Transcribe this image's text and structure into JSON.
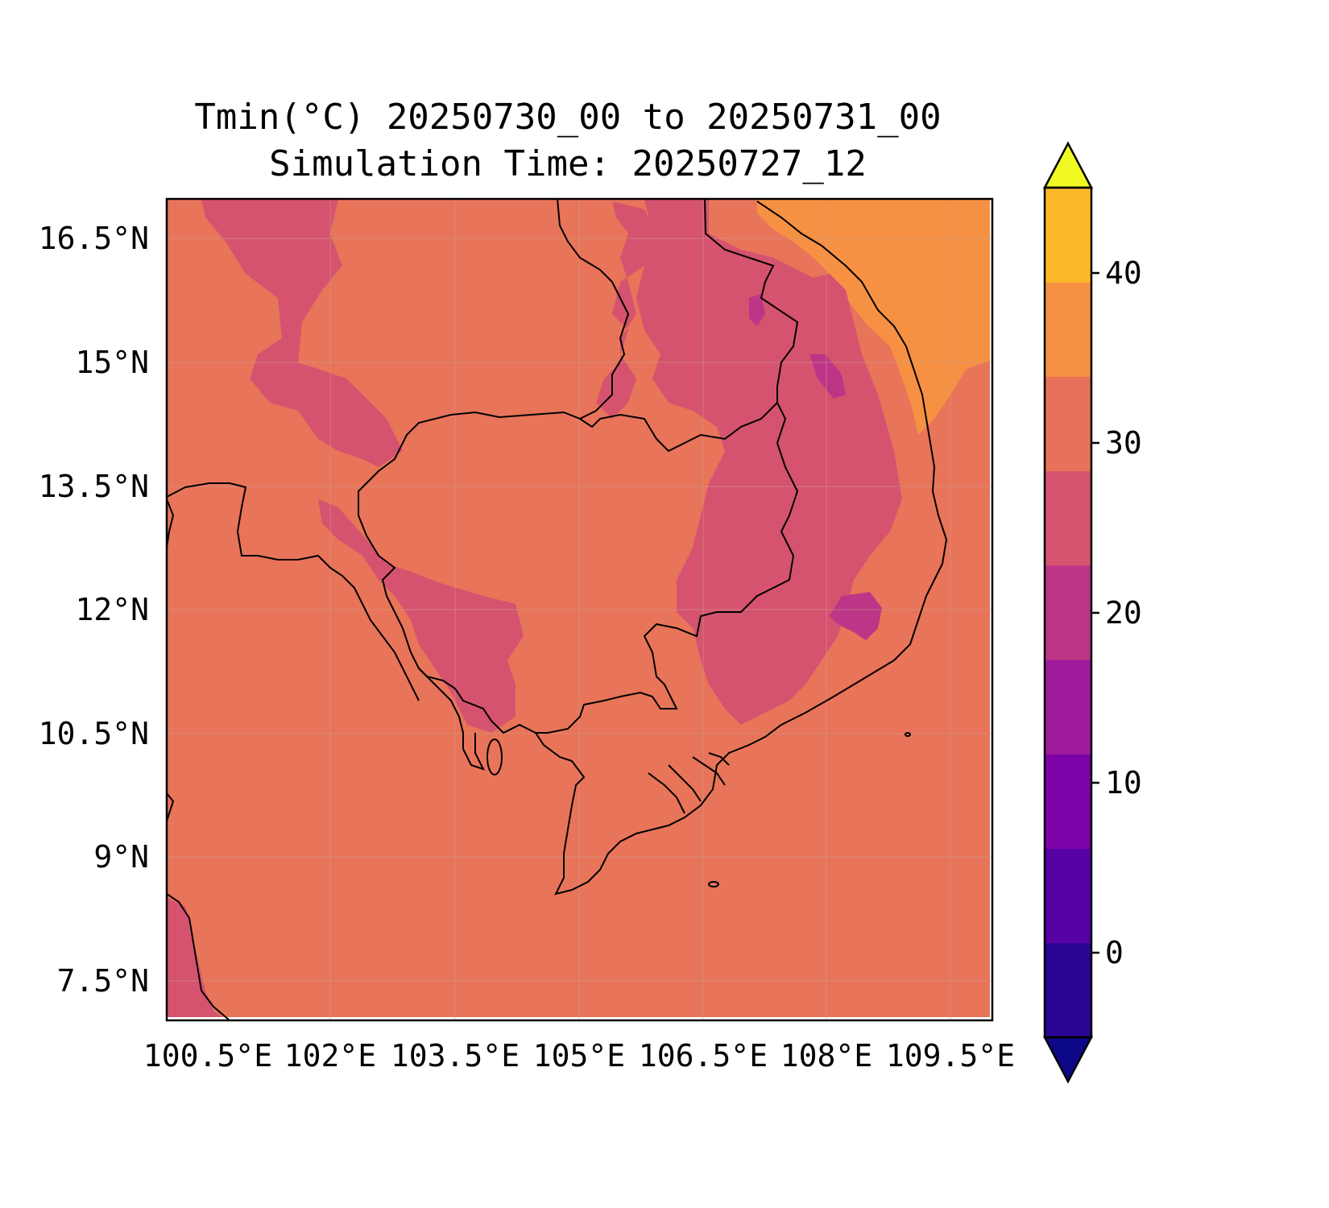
{
  "title": {
    "line1": "Tmin(°C) 20250730_00 to 20250731_00",
    "line2": "Simulation Time: 20250727_12"
  },
  "axes": {
    "lon_ticks": [
      "100.5°E",
      "102°E",
      "103.5°E",
      "105°E",
      "106.5°E",
      "108°E",
      "109.5°E"
    ],
    "lat_ticks": [
      "16.5°N",
      "15°N",
      "13.5°N",
      "12°N",
      "10.5°N",
      "9°N",
      "7.5°N"
    ],
    "gridlines": true
  },
  "colorbar": {
    "tick_labels": [
      "0",
      "10",
      "20",
      "30",
      "40"
    ],
    "levels": [
      -5,
      0,
      5,
      10,
      15,
      20,
      25,
      30,
      35,
      40,
      45
    ],
    "colors": [
      "#0d0887",
      "#2a0593",
      "#5602a4",
      "#7d03a8",
      "#a01a9c",
      "#bc3587",
      "#d5536f",
      "#e8715a",
      "#f69144",
      "#fcb829",
      "#f0f921"
    ],
    "extend": "both"
  },
  "field": {
    "dominant_color": "#e8745a",
    "cool_color": "#d5536f",
    "coolest_color": "#bc3587",
    "warm_color": "#f69144",
    "coastline_color": "#000000"
  }
}
